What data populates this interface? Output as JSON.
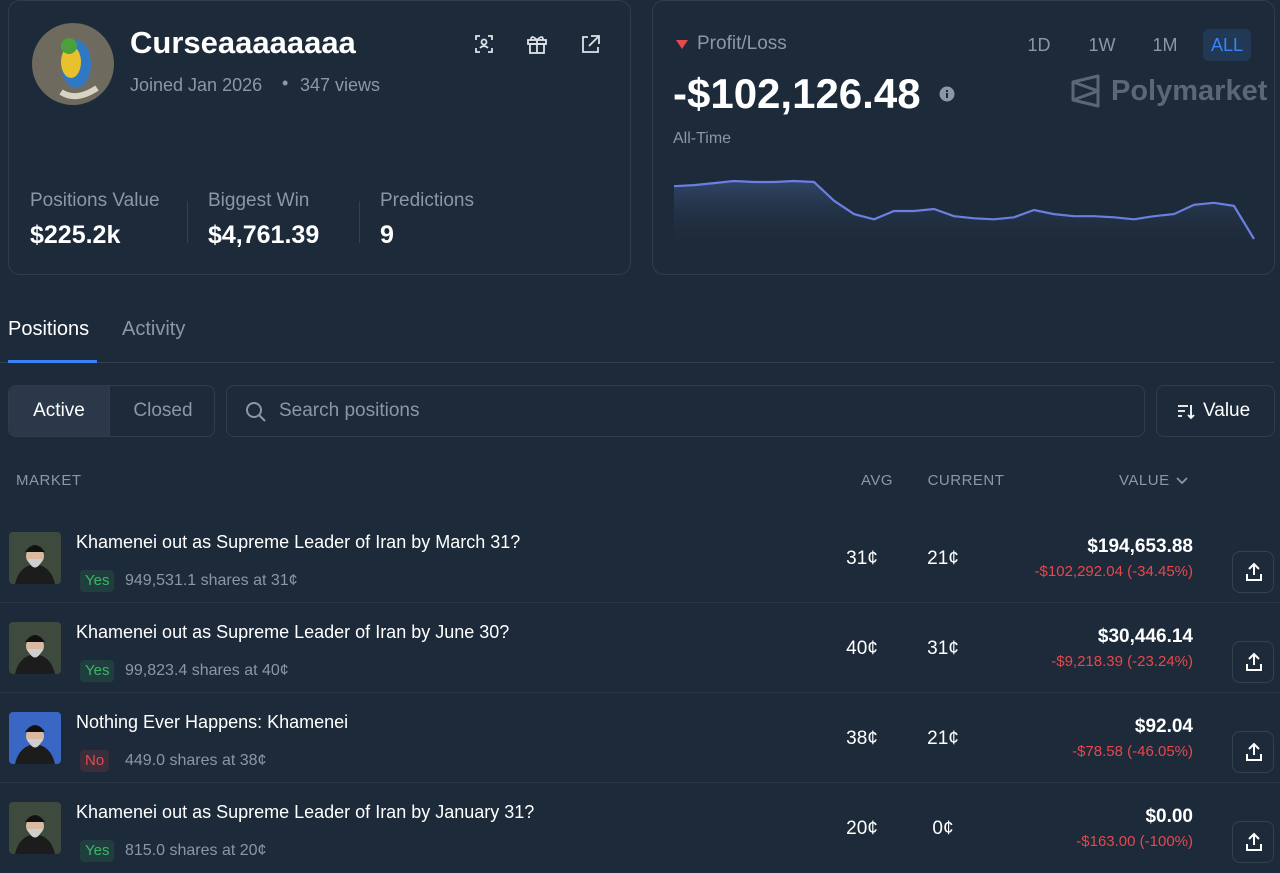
{
  "profile": {
    "name": "Curseaaaaaaaa",
    "joined": "Joined Jan 2026",
    "views": "347 views",
    "stats": [
      {
        "label": "Positions Value",
        "value": "$225.2k"
      },
      {
        "label": "Biggest Win",
        "value": "$4,761.39"
      },
      {
        "label": "Predictions",
        "value": "9"
      }
    ]
  },
  "pnl": {
    "label": "Profit/Loss",
    "value": "-$102,126.48",
    "period_label": "All-Time",
    "brand": "Polymarket",
    "ranges": [
      "1D",
      "1W",
      "1M",
      "ALL"
    ],
    "active_range": 3,
    "line_color": "#6b7fe0",
    "series": [
      54,
      55,
      57,
      59,
      58,
      58,
      59,
      58,
      40,
      27,
      22,
      30,
      30,
      32,
      25,
      23,
      22,
      24,
      31,
      27,
      25,
      25,
      24,
      22,
      25,
      27,
      36,
      38,
      35,
      3
    ]
  },
  "tabs": [
    "Positions",
    "Activity"
  ],
  "filters": {
    "toggle": [
      "Active",
      "Closed"
    ],
    "search_placeholder": "Search positions",
    "sort": "Value"
  },
  "table": {
    "columns": [
      "MARKET",
      "AVG",
      "CURRENT",
      "VALUE"
    ],
    "rows": [
      {
        "title": "Khamenei out as Supreme Leader of Iran by March 31?",
        "outcome": "Yes",
        "outcome_color": "#3db468",
        "shares": "949,531.1 shares at 31¢",
        "avg": "31¢",
        "current": "21¢",
        "value": "$194,653.88",
        "pnl": "-$102,292.04 (-34.45%)"
      },
      {
        "title": "Khamenei out as Supreme Leader of Iran by June 30?",
        "outcome": "Yes",
        "outcome_color": "#3db468",
        "shares": "99,823.4 shares at 40¢",
        "avg": "40¢",
        "current": "31¢",
        "value": "$30,446.14",
        "pnl": "-$9,218.39 (-23.24%)"
      },
      {
        "title": "Nothing Ever Happens: Khamenei",
        "outcome": "No",
        "outcome_color": "#e5484d",
        "shares": "449.0 shares at 38¢",
        "avg": "38¢",
        "current": "21¢",
        "value": "$92.04",
        "pnl": "-$78.58 (-46.05%)"
      },
      {
        "title": "Khamenei out as Supreme Leader of Iran by January 31?",
        "outcome": "Yes",
        "outcome_color": "#3db468",
        "shares": "815.0 shares at 20¢",
        "avg": "20¢",
        "current": "0¢",
        "value": "$0.00",
        "pnl": "-$163.00 (-100%)"
      }
    ]
  }
}
